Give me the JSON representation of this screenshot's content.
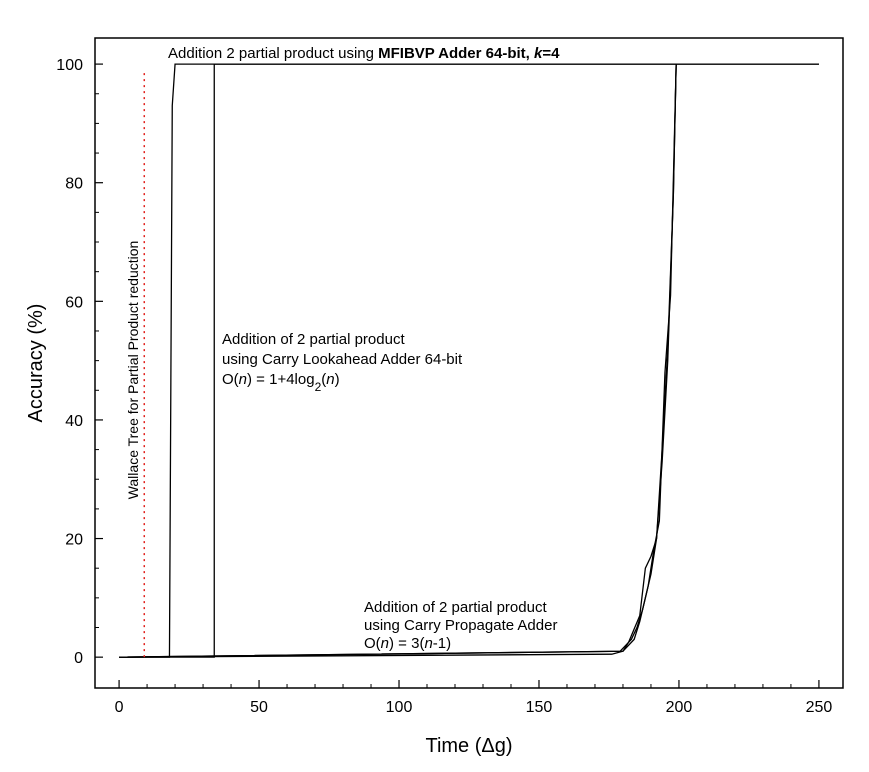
{
  "chart_data": {
    "type": "line",
    "xlabel": "Time (Δg)",
    "ylabel": "Accuracy (%)",
    "xlim": [
      -8.6,
      258.6
    ],
    "ylim": [
      -5.2,
      104.4
    ],
    "xticks": [
      0,
      50,
      100,
      150,
      200,
      250
    ],
    "yticks": [
      0,
      20,
      40,
      60,
      80,
      100
    ],
    "xminorticks": [
      10,
      20,
      30,
      40,
      60,
      70,
      80,
      90,
      110,
      120,
      130,
      140,
      160,
      170,
      180,
      190,
      210,
      220,
      230,
      240
    ],
    "yminorticks": [
      5,
      10,
      15,
      25,
      30,
      35,
      45,
      50,
      55,
      65,
      70,
      75,
      85,
      90,
      95
    ],
    "series": [
      {
        "color": "#000000",
        "x": [
          0,
          18,
          19,
          20,
          250
        ],
        "values": [
          0,
          0,
          93,
          100,
          100
        ]
      },
      {
        "color": "#000000",
        "x": [
          0,
          34,
          34,
          250
        ],
        "values": [
          0,
          0,
          100,
          100
        ]
      },
      {
        "color": "#000000",
        "x": [
          0,
          176,
          180,
          182,
          184,
          186,
          188,
          190,
          192,
          194,
          196,
          198,
          199
        ],
        "values": [
          0,
          0.5,
          1,
          2,
          3,
          6,
          10,
          14,
          20,
          33,
          50,
          78,
          100
        ]
      },
      {
        "color": "#000000",
        "x": [
          0,
          179,
          181,
          183,
          185,
          187,
          189,
          191,
          193,
          195,
          197,
          199
        ],
        "values": [
          0,
          1,
          2,
          3,
          5,
          8,
          12,
          18,
          23,
          48,
          61,
          100
        ]
      },
      {
        "color": "#000000",
        "x": [
          0,
          180,
          182,
          186,
          188,
          190,
          192,
          194,
          196,
          198,
          199
        ],
        "values": [
          0,
          1,
          2.5,
          7,
          15,
          17,
          20,
          35,
          52,
          78,
          100
        ]
      },
      {
        "color": "#e0201c",
        "dash": "dotted",
        "x": [
          9,
          9
        ],
        "values": [
          0,
          99
        ]
      }
    ],
    "annotations": [
      {
        "lines": [
          [
            {
              "text": "Addition 2 partial product using "
            },
            {
              "text": "MFIBVP Adder 64-bit, ",
              "bold": true
            },
            {
              "text": "k",
              "bold": true,
              "italic": true
            },
            {
              "text": "=4",
              "bold": true
            }
          ]
        ]
      },
      {
        "lines": [
          [
            {
              "text": "Wallace Tree for Partial Product reduction"
            }
          ]
        ]
      },
      {
        "lines": [
          [
            {
              "text": "Addition of 2 partial product"
            }
          ],
          [
            {
              "text": "using Carry Lookahead Adder 64-bit"
            }
          ],
          [
            {
              "text": "O("
            },
            {
              "text": "n",
              "italic": true
            },
            {
              "text": ") = 1+4log"
            },
            {
              "text": "2",
              "sub": true
            },
            {
              "text": "("
            },
            {
              "text": "n",
              "italic": true
            },
            {
              "text": ")"
            }
          ]
        ]
      },
      {
        "lines": [
          [
            {
              "text": "Addition of 2 partial product"
            }
          ],
          [
            {
              "text": "using Carry Propagate Adder"
            }
          ],
          [
            {
              "text": "O("
            },
            {
              "text": "n",
              "italic": true
            },
            {
              "text": ") = 3("
            },
            {
              "text": "n",
              "italic": true
            },
            {
              "text": "-1)"
            }
          ]
        ]
      }
    ]
  }
}
